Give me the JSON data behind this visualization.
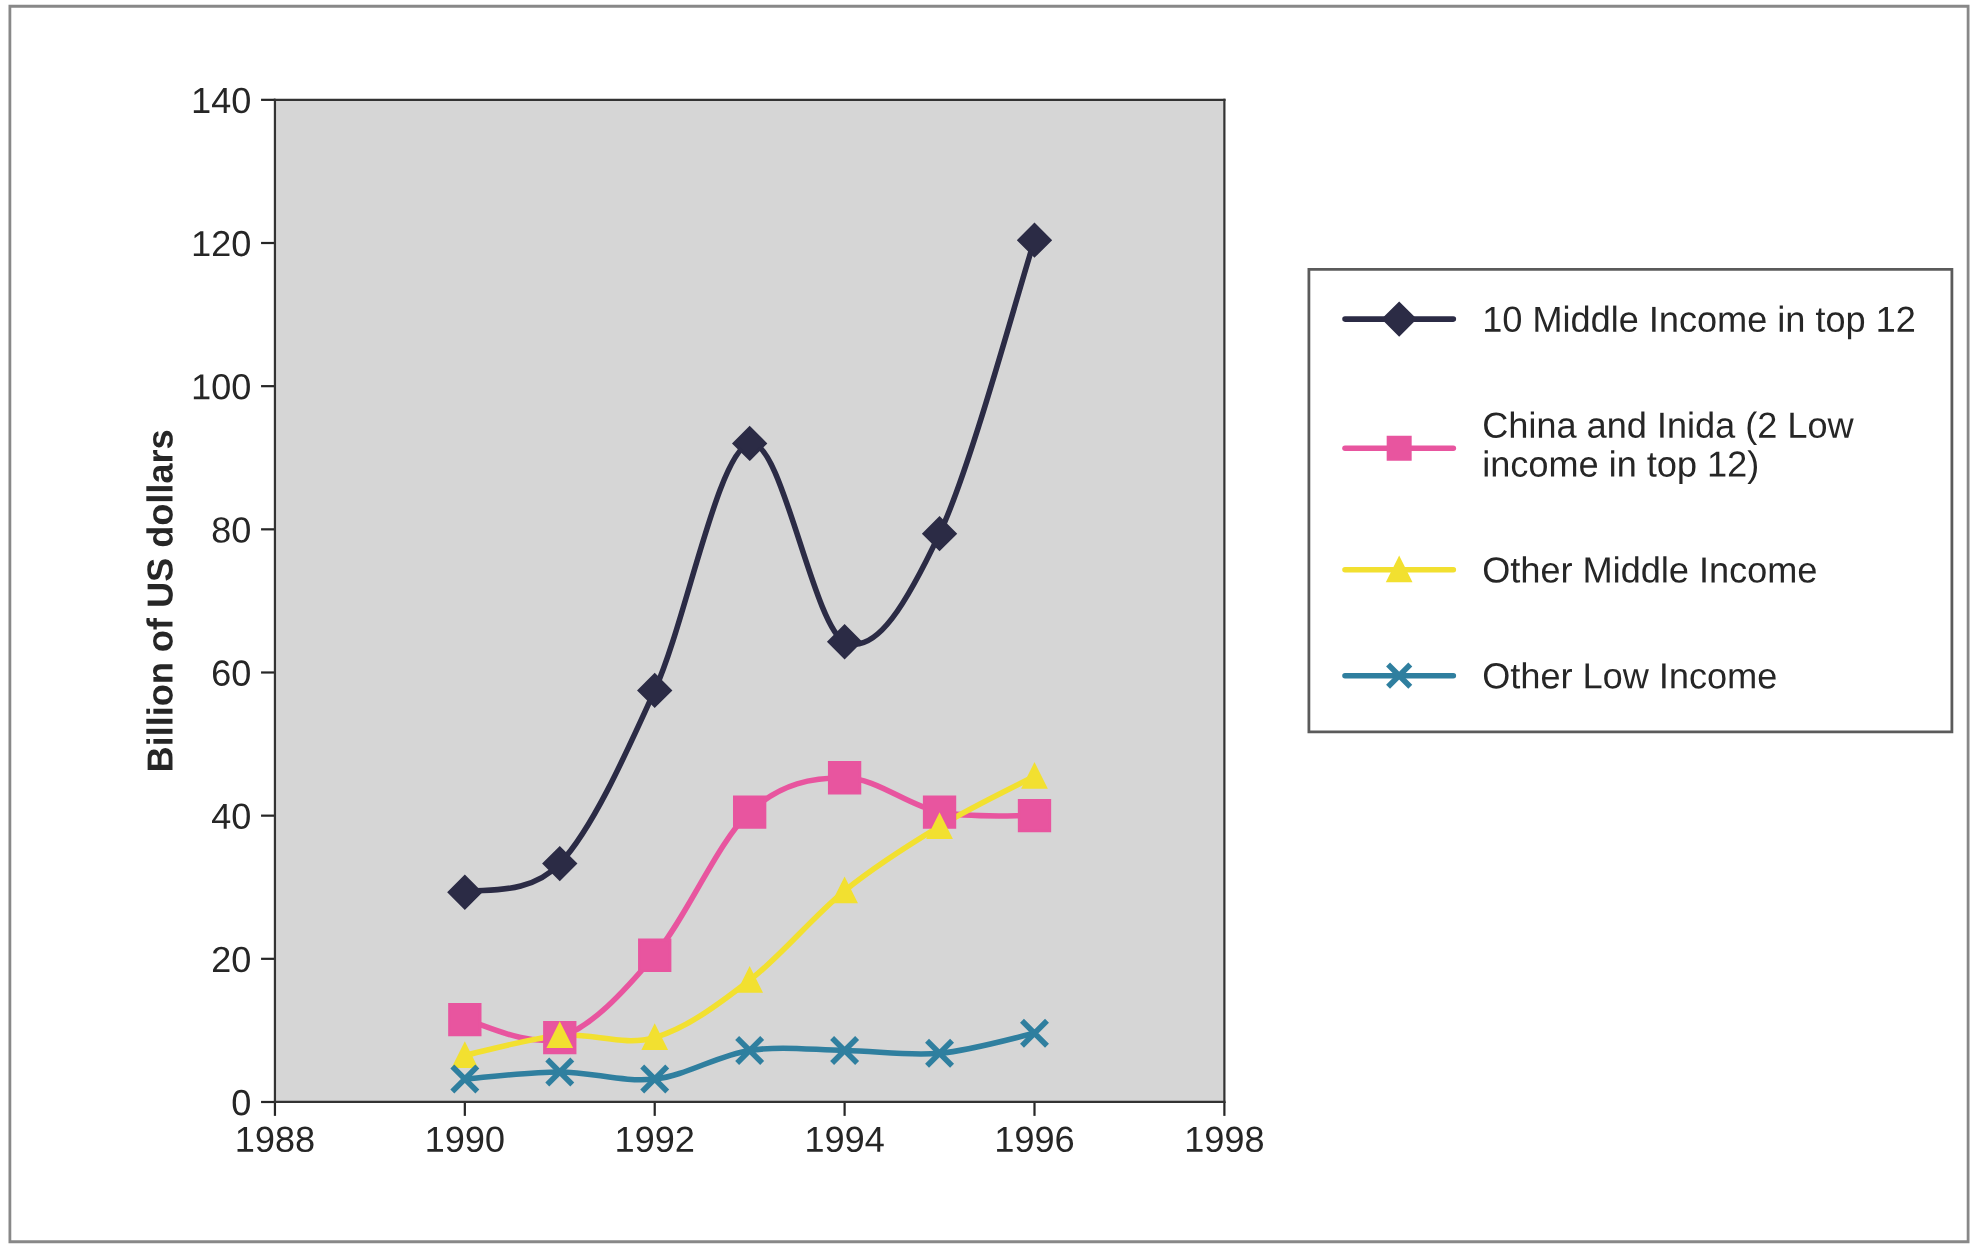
{
  "chart_data": {
    "type": "line",
    "ylabel": "Billion of US dollars",
    "x": [
      1990,
      1991,
      1992,
      1993,
      1994,
      1995,
      1996
    ],
    "series": [
      {
        "name": "10 Middle Income in top 12",
        "color": "#2b2b45",
        "marker": "diamond",
        "values": [
          29.3,
          33.3,
          57.5,
          92,
          64.3,
          79.4,
          120.4
        ]
      },
      {
        "name": "China and Inida (2 Low income in top 12)",
        "color": "#e8559f",
        "marker": "square",
        "values": [
          11.5,
          9,
          20.5,
          40.5,
          45.3,
          40.5,
          40
        ]
      },
      {
        "name": "Other Middle Income",
        "color": "#f2e030",
        "marker": "triangle",
        "values": [
          6.5,
          9.3,
          9,
          17,
          29.5,
          38.5,
          45.5
        ]
      },
      {
        "name": "Other Low Income",
        "color": "#2f7f9f",
        "marker": "cross",
        "values": [
          3.2,
          4.2,
          3.2,
          7.2,
          7.2,
          6.8,
          9.6
        ]
      }
    ],
    "xlim": [
      1988,
      1998
    ],
    "xticks": [
      1988,
      1990,
      1992,
      1994,
      1996,
      1998
    ],
    "ylim": [
      0,
      140
    ],
    "yticks": [
      0,
      20,
      40,
      60,
      80,
      100,
      120,
      140
    ],
    "grid": false,
    "legend": "right"
  }
}
